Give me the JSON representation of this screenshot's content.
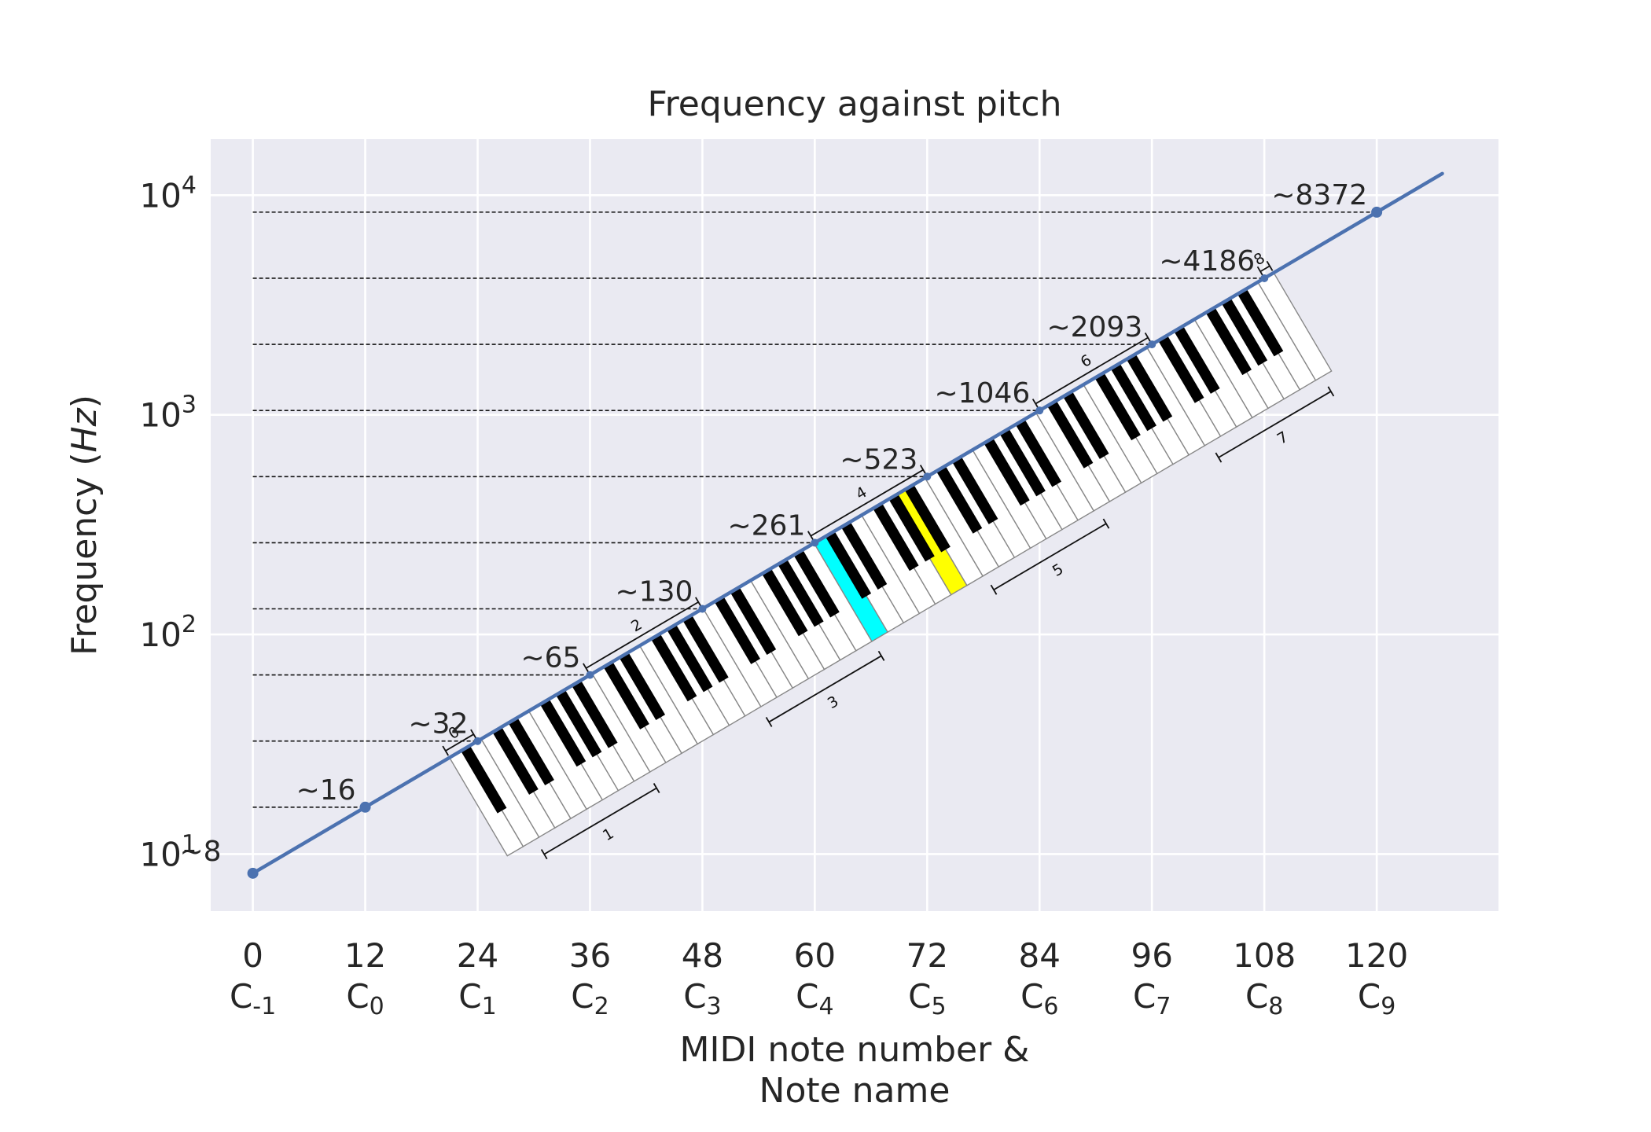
{
  "chart_data": {
    "type": "line",
    "title": "Frequency against pitch",
    "xlabel_line1": "MIDI note number &",
    "xlabel_line2": "Note name",
    "ylabel_prefix": "Frequency (",
    "ylabel_unit": "Hz",
    "ylabel_suffix": ")",
    "xlim": [
      -4.5,
      133
    ],
    "ylim": [
      5.5,
      18000
    ],
    "yscale": "log",
    "grid": true,
    "x_ticks": [
      {
        "value": 0,
        "label": "0",
        "note": "C",
        "sub": "-1"
      },
      {
        "value": 12,
        "label": "12",
        "note": "C",
        "sub": "0"
      },
      {
        "value": 24,
        "label": "24",
        "note": "C",
        "sub": "1"
      },
      {
        "value": 36,
        "label": "36",
        "note": "C",
        "sub": "2"
      },
      {
        "value": 48,
        "label": "48",
        "note": "C",
        "sub": "3"
      },
      {
        "value": 60,
        "label": "60",
        "note": "C",
        "sub": "4"
      },
      {
        "value": 72,
        "label": "72",
        "note": "C",
        "sub": "5"
      },
      {
        "value": 84,
        "label": "84",
        "note": "C",
        "sub": "6"
      },
      {
        "value": 96,
        "label": "96",
        "note": "C",
        "sub": "7"
      },
      {
        "value": 108,
        "label": "108",
        "note": "C",
        "sub": "8"
      },
      {
        "value": 120,
        "label": "120",
        "note": "C",
        "sub": "9"
      }
    ],
    "y_ticks": [
      {
        "value": 10,
        "base": "10",
        "exp": "1"
      },
      {
        "value": 100,
        "base": "10",
        "exp": "2"
      },
      {
        "value": 1000,
        "base": "10",
        "exp": "3"
      },
      {
        "value": 10000,
        "base": "10",
        "exp": "4"
      }
    ],
    "line": {
      "x_start": 0,
      "x_end": 127,
      "color": "#4c72b0"
    },
    "points": [
      {
        "x": 0,
        "y": 8.18
      },
      {
        "x": 12,
        "y": 16.35
      },
      {
        "x": 120,
        "y": 8372
      }
    ],
    "annotations": [
      {
        "x": 0,
        "y": 8.18,
        "label": "~8"
      },
      {
        "x": 12,
        "y": 16.35,
        "label": "~16"
      },
      {
        "x": 24,
        "y": 32.7,
        "label": "~32"
      },
      {
        "x": 36,
        "y": 65.4,
        "label": "~65"
      },
      {
        "x": 48,
        "y": 130.8,
        "label": "~130"
      },
      {
        "x": 60,
        "y": 261.6,
        "label": "~261"
      },
      {
        "x": 72,
        "y": 523.3,
        "label": "~523"
      },
      {
        "x": 84,
        "y": 1046.5,
        "label": "~1046"
      },
      {
        "x": 96,
        "y": 2093,
        "label": "~2093"
      },
      {
        "x": 108,
        "y": 4186,
        "label": "~4186"
      },
      {
        "x": 120,
        "y": 8372,
        "label": "~8372"
      }
    ],
    "keyboard": {
      "first_midi": 21,
      "last_midi": 108,
      "octave_labels": [
        "0",
        "1",
        "2",
        "3",
        "4",
        "5",
        "6",
        "7",
        "8"
      ],
      "highlights": [
        {
          "midi": 60,
          "color": "#00ffff"
        },
        {
          "midi": 69,
          "color": "#ffff00"
        }
      ]
    },
    "colors": {
      "background": "#eaeaf2",
      "grid": "#ffffff",
      "line": "#4c72b0",
      "text": "#262626"
    }
  }
}
